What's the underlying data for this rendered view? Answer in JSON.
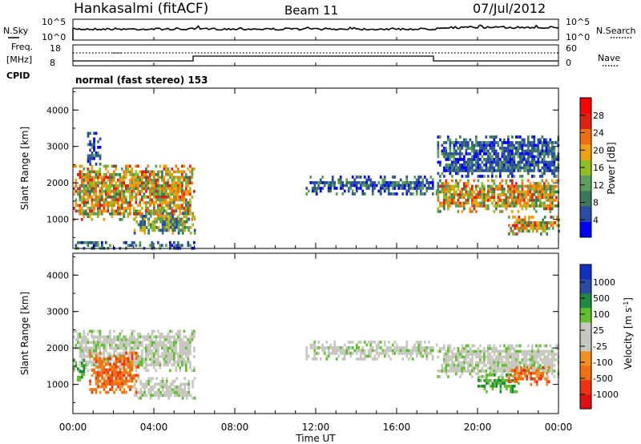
{
  "header": {
    "station": "Hankasalmi (fitACF)",
    "beam": "Beam 11",
    "date": "07/Jul/2012"
  },
  "noise_panel": {
    "left_label": "N.Sky",
    "right_label": "N.Search",
    "ticks_left": [
      "10^5",
      "10^0"
    ],
    "ticks_right": [
      "10^5",
      "10^0"
    ]
  },
  "freq_panel": {
    "left_label_1": "Freq.",
    "left_label_2": "[MHz]",
    "left_label_3": "CPID",
    "right_label": "Nave",
    "ticks_left": [
      "18",
      "8"
    ],
    "ticks_right": [
      "60",
      "0"
    ],
    "cpid_text": "normal (fast stereo) 153"
  },
  "colors": {
    "power_scale": [
      "#0000ff",
      "#2a4aa8",
      "#3a7a5a",
      "#5aa05a",
      "#90c020",
      "#f0a010",
      "#f07010",
      "#e02010",
      "#ff0000"
    ],
    "velocity_scale": [
      "#e01010",
      "#f03010",
      "#f07010",
      "#f09020",
      "#c8c8c0",
      "#c8c8c0",
      "#60c030",
      "#208a40",
      "#2a4aa8",
      "#1030c0"
    ]
  },
  "chart_data": [
    {
      "type": "heatmap",
      "panel": "power",
      "ylabel": "Slant Range [km]",
      "yticks": [
        "1000",
        "2000",
        "3000",
        "4000"
      ],
      "ylim": [
        200,
        4600
      ],
      "xlim": [
        0,
        24
      ],
      "colorbar": {
        "label": "Power [dB]",
        "ticks": [
          "4",
          "8",
          "12",
          "16",
          "20",
          "24",
          "28"
        ],
        "range": [
          0,
          32
        ]
      },
      "echo_regions": [
        {
          "t0": 0.0,
          "t1": 6.0,
          "r0": 1000,
          "r1": 2500,
          "level": "high"
        },
        {
          "t0": 0.7,
          "t1": 1.3,
          "r0": 2500,
          "r1": 3400,
          "level": "low"
        },
        {
          "t0": 3.0,
          "t1": 6.0,
          "r0": 600,
          "r1": 1200,
          "level": "medium"
        },
        {
          "t0": 0.0,
          "t1": 6.0,
          "r0": 200,
          "r1": 400,
          "level": "low"
        },
        {
          "t0": 11.5,
          "t1": 18.0,
          "r0": 1700,
          "r1": 2200,
          "level": "low"
        },
        {
          "t0": 18.0,
          "t1": 24.0,
          "r0": 1200,
          "r1": 2100,
          "level": "high"
        },
        {
          "t0": 18.0,
          "t1": 24.0,
          "r0": 2200,
          "r1": 3300,
          "level": "low"
        },
        {
          "t0": 21.5,
          "t1": 24.0,
          "r0": 600,
          "r1": 1100,
          "level": "high"
        }
      ]
    },
    {
      "type": "heatmap",
      "panel": "velocity",
      "ylabel": "Slant Range [km]",
      "yticks": [
        "1000",
        "2000",
        "3000",
        "4000"
      ],
      "ylim": [
        200,
        4600
      ],
      "xlim": [
        0,
        24
      ],
      "xticks": [
        "00:00",
        "04:00",
        "08:00",
        "12:00",
        "16:00",
        "20:00",
        "00:00"
      ],
      "xlabel": "Time UT",
      "colorbar": {
        "label": "Velocity [m s^-1]",
        "ticks": [
          "1000",
          "500",
          "100",
          "25",
          "-25",
          "-100",
          "-500",
          "-1000"
        ]
      },
      "echo_regions": [
        {
          "t0": 0.0,
          "t1": 6.0,
          "r0": 1400,
          "r1": 2500,
          "level": "near-zero"
        },
        {
          "t0": 0.8,
          "t1": 3.2,
          "r0": 800,
          "r1": 1900,
          "level": "negative"
        },
        {
          "t0": 0.0,
          "t1": 0.5,
          "r0": 1100,
          "r1": 1700,
          "level": "positive"
        },
        {
          "t0": 3.0,
          "t1": 6.0,
          "r0": 600,
          "r1": 1200,
          "level": "near-zero"
        },
        {
          "t0": 11.5,
          "t1": 18.0,
          "r0": 1700,
          "r1": 2200,
          "level": "near-zero"
        },
        {
          "t0": 18.0,
          "t1": 24.0,
          "r0": 1200,
          "r1": 2100,
          "level": "near-zero"
        },
        {
          "t0": 20.0,
          "t1": 22.0,
          "r0": 800,
          "r1": 1300,
          "level": "positive"
        },
        {
          "t0": 21.5,
          "t1": 23.5,
          "r0": 1000,
          "r1": 1500,
          "level": "negative"
        }
      ]
    }
  ]
}
